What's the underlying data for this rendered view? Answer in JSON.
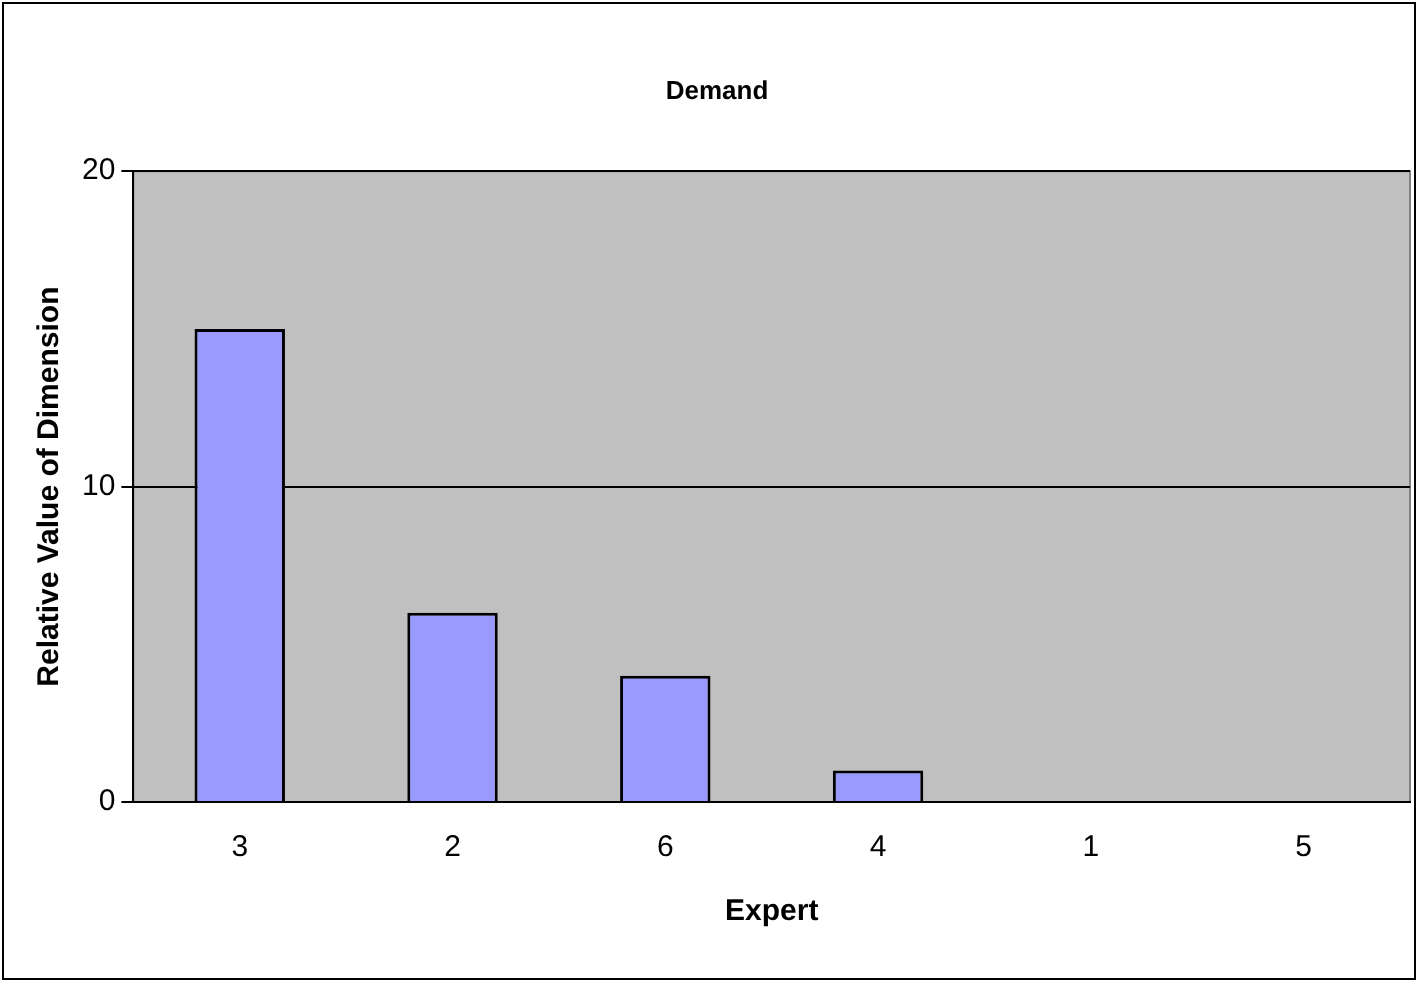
{
  "chart_data": {
    "type": "bar",
    "title": "Demand",
    "xlabel": "Expert",
    "ylabel": "Relative Value of Dimension",
    "categories": [
      "3",
      "2",
      "6",
      "4",
      "1",
      "5"
    ],
    "values": [
      15,
      6,
      4,
      1,
      0,
      0
    ],
    "color": "#9999ff",
    "ylim": [
      0,
      20
    ],
    "yticks": [
      0,
      10,
      20
    ],
    "grid": "y",
    "legend": false
  }
}
